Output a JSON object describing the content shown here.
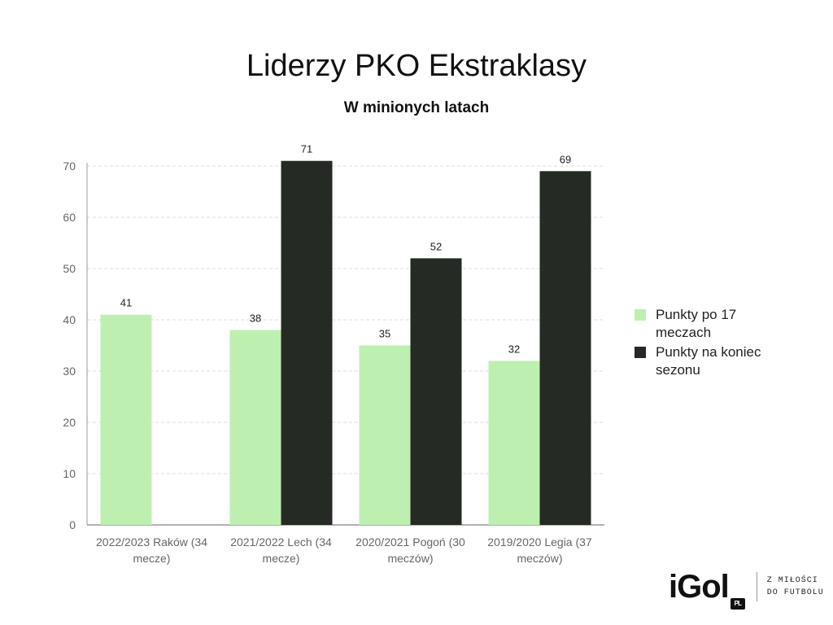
{
  "chart_data": {
    "type": "bar",
    "title": "Liderzy PKO Ekstraklasy",
    "subtitle": "W minionych latach",
    "categories": [
      [
        "2022/2023 Raków (34",
        "mecze)"
      ],
      [
        "2021/2022 Lech (34",
        "mecze)"
      ],
      [
        "2020/2021 Pogoń (30",
        "meczów)"
      ],
      [
        "2019/2020 Legia (37",
        "meczów)"
      ]
    ],
    "series": [
      {
        "name": "Punkty po 17 meczach",
        "color": "#bdf0b0",
        "values": [
          41,
          38,
          35,
          32
        ]
      },
      {
        "name": "Punkty na koniec sezonu",
        "color": "#252a25",
        "values": [
          null,
          71,
          52,
          69
        ]
      }
    ],
    "ylim": [
      0,
      70
    ],
    "yticks": [
      0,
      10,
      20,
      30,
      40,
      50,
      60,
      70
    ],
    "grid": true,
    "legend_position": "right"
  },
  "legend": {
    "items": [
      {
        "label_line1": "Punkty po 17",
        "label_line2": "meczach",
        "color": "#bdf0b0"
      },
      {
        "label_line1": "Punkty na koniec",
        "label_line2": "sezonu",
        "color": "#252a25"
      }
    ]
  },
  "brand": {
    "logo_text": "iGol",
    "logo_badge": "PL",
    "tagline_line1": "Z MIŁOŚCI",
    "tagline_line2": "DO FUTBOLU"
  }
}
